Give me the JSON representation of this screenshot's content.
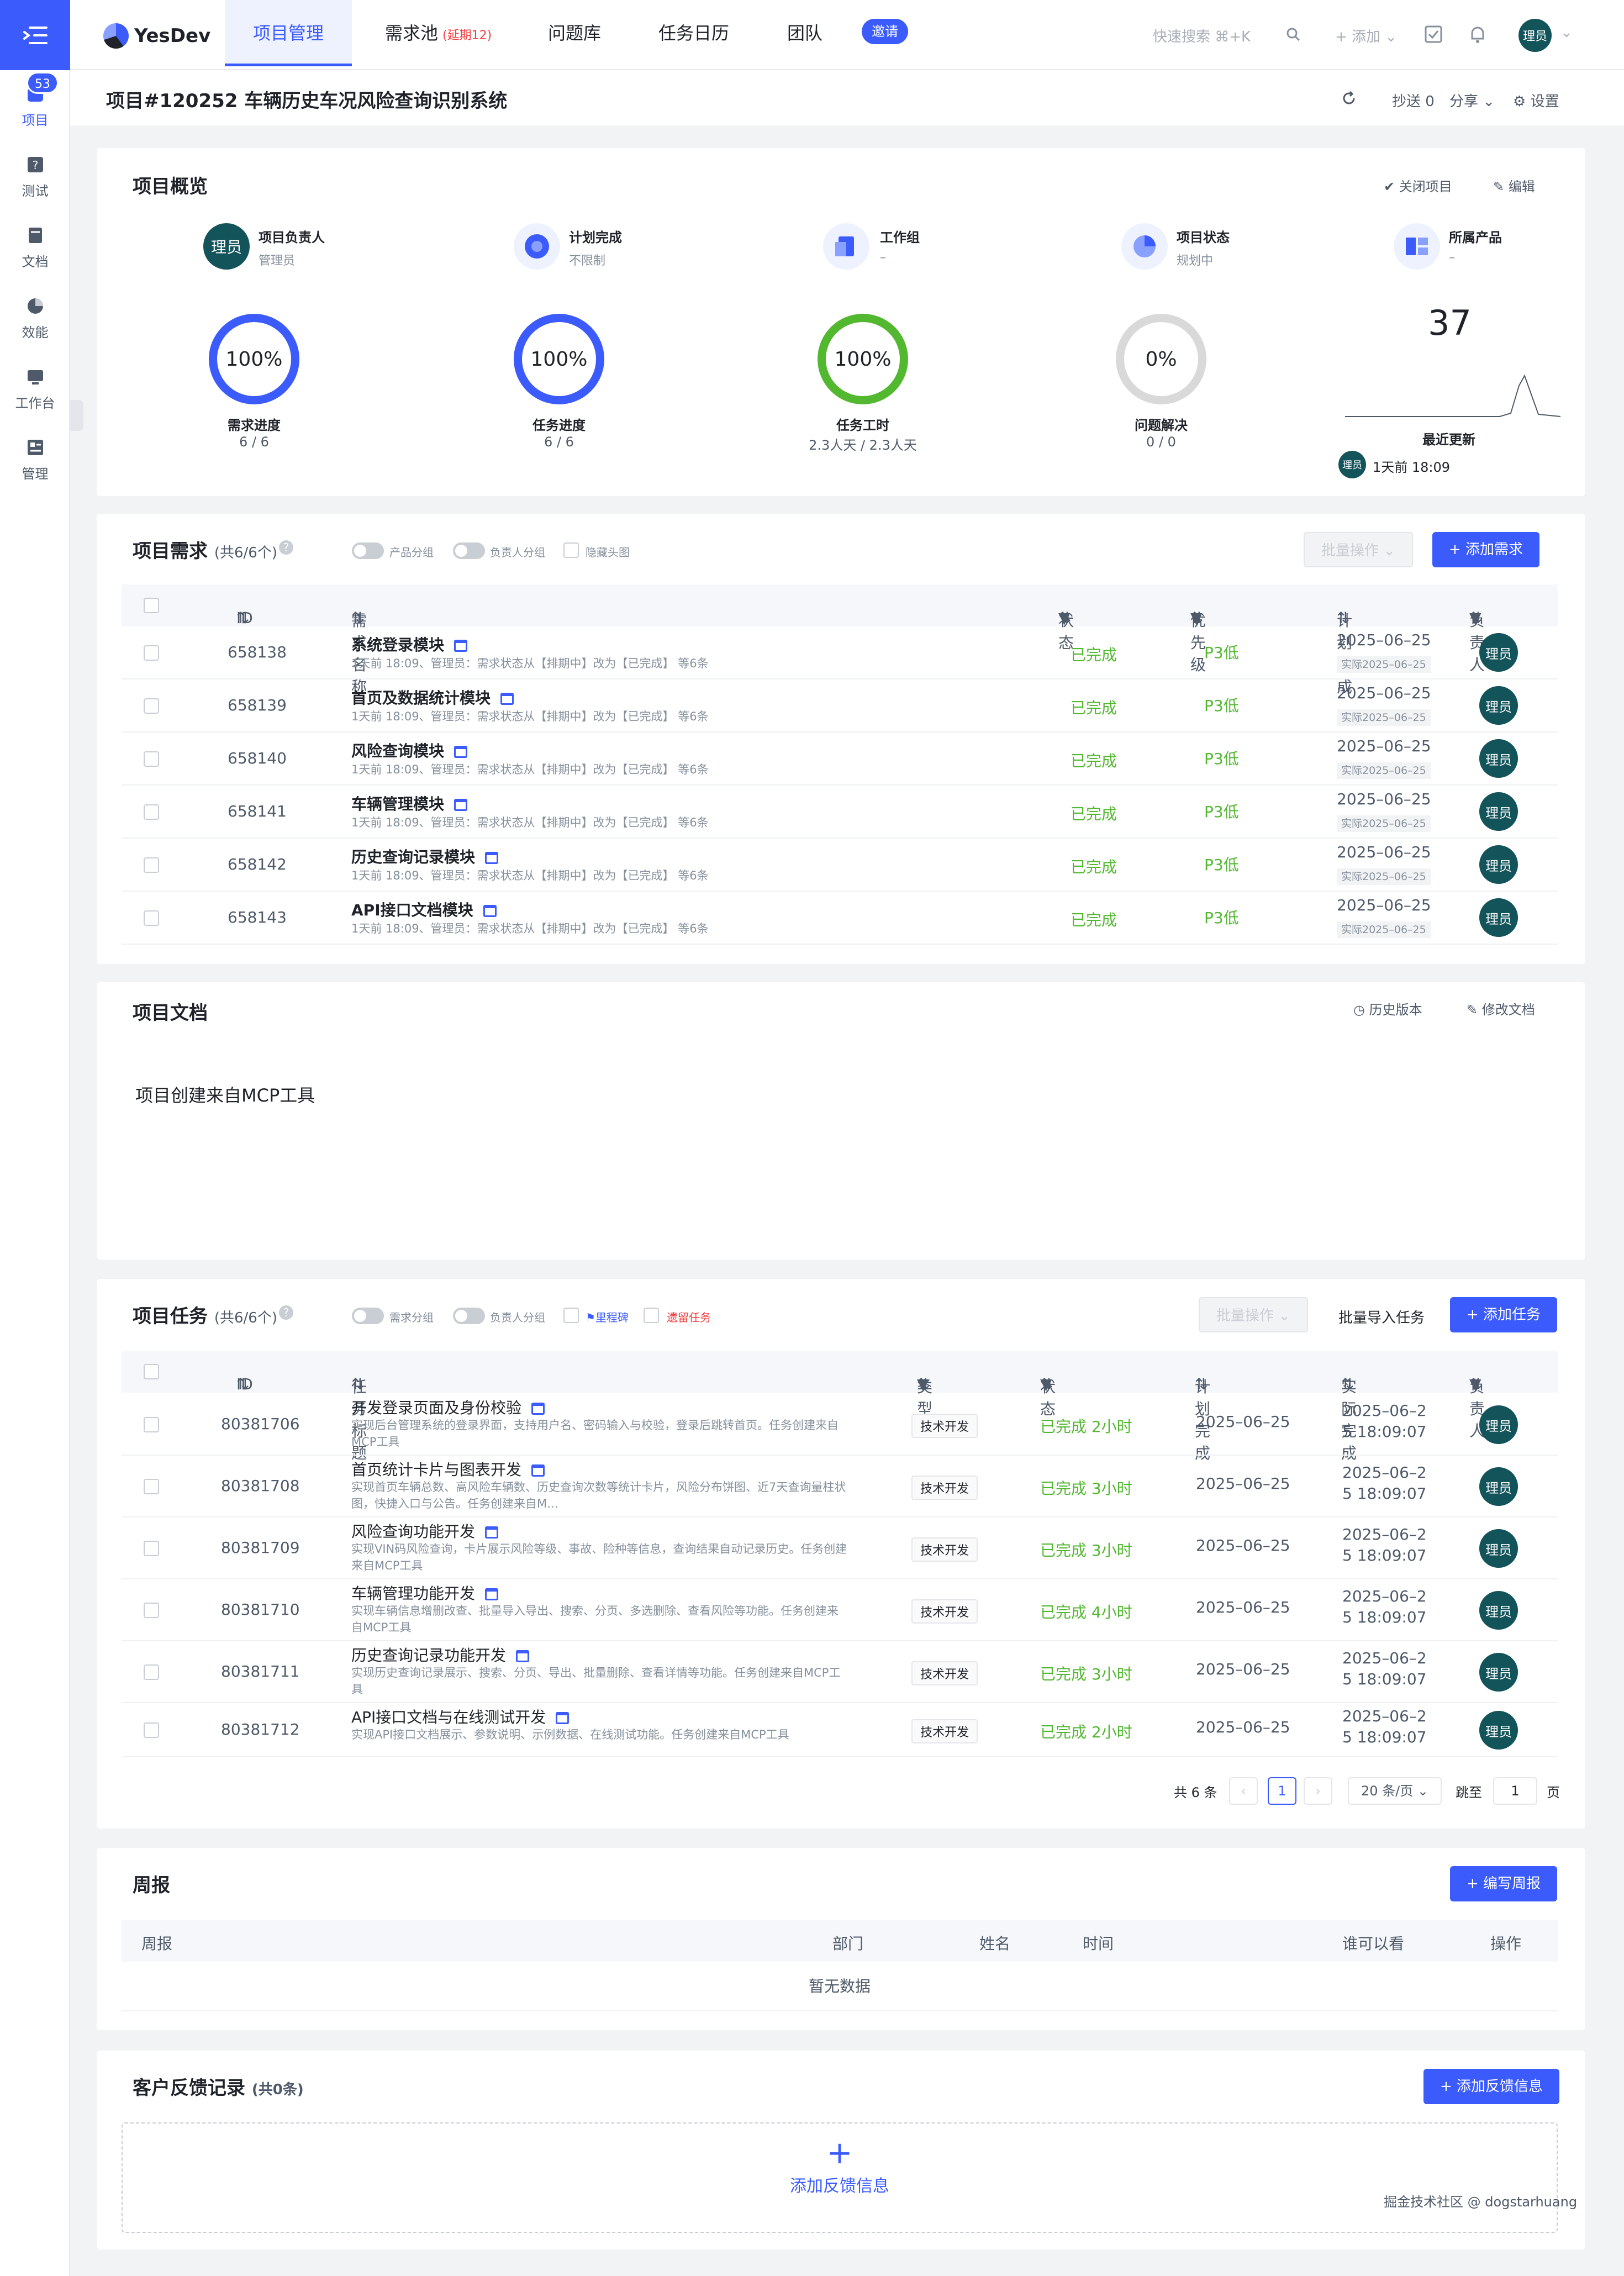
{
  "app": {
    "logo": "YesDev",
    "menu_icon": "menu-indent-icon"
  },
  "rail": {
    "badge": "53",
    "items": [
      {
        "label": "项目",
        "icon": "project-icon"
      },
      {
        "label": "测试",
        "icon": "test-icon"
      },
      {
        "label": "文档",
        "icon": "doc-icon"
      },
      {
        "label": "效能",
        "icon": "pie-icon"
      },
      {
        "label": "工作台",
        "icon": "monitor-icon"
      },
      {
        "label": "管理",
        "icon": "manage-icon"
      }
    ]
  },
  "nav": {
    "tabs": [
      "项目管理",
      "需求池",
      "问题库",
      "任务日历",
      "团队"
    ],
    "req_overdue": "(延期12)",
    "invite": "邀请",
    "search_placeholder": "快速搜索 ⌘+K",
    "add_label": "+ 添加",
    "user": "理员"
  },
  "titlebar": {
    "title": "项目#120252 车辆历史车况风险查询识别系统",
    "cc": "抄送 0",
    "share": "分享",
    "settings": "设置"
  },
  "overview": {
    "title": "项目概览",
    "close": "关闭项目",
    "edit": "编辑",
    "meta": [
      {
        "label": "项目负责人",
        "value": "管理员"
      },
      {
        "label": "计划完成",
        "value": "不限制"
      },
      {
        "label": "工作组",
        "value": "–"
      },
      {
        "label": "项目状态",
        "value": "规划中"
      },
      {
        "label": "所属产品",
        "value": "–"
      }
    ],
    "owner_avatar": "理员",
    "rings": [
      {
        "pct": "100%",
        "fill": 1.0,
        "color": "#3b5bfd",
        "label": "需求进度",
        "sub": "6 / 6"
      },
      {
        "pct": "100%",
        "fill": 1.0,
        "color": "#3b5bfd",
        "label": "任务进度",
        "sub": "6 / 6"
      },
      {
        "pct": "100%",
        "fill": 1.0,
        "color": "#52b830",
        "label": "任务工时",
        "sub": "2.3人天 / 2.3人天"
      },
      {
        "pct": "0%",
        "fill": 0.0,
        "color": "#d9d9d9",
        "label": "问题解决",
        "sub": "0 / 0"
      }
    ],
    "recent": {
      "count": "37",
      "label": "最近更新",
      "avatar": "理员",
      "time": "1天前 18:09"
    }
  },
  "requirements": {
    "title": "项目需求",
    "count": "(共6/6个)",
    "toggles": [
      "产品分组",
      "负责人分组"
    ],
    "hide_avatar": "隐藏头图",
    "batch": "批量操作",
    "add": "+ 添加需求",
    "columns": [
      "ID",
      "需求名称",
      "状态",
      "优先级",
      "计划完成",
      "负责人"
    ],
    "rows": [
      {
        "id": "658138",
        "name": "系统登录模块",
        "desc": "1天前 18:09、管理员：需求状态从【排期中】改为【已完成】 等6条",
        "status": "已完成",
        "prio": "P3低",
        "plan": "2025–06–25",
        "real": "实际2025–06–25",
        "owner": "理员"
      },
      {
        "id": "658139",
        "name": "首页及数据统计模块",
        "desc": "1天前 18:09、管理员：需求状态从【排期中】改为【已完成】 等6条",
        "status": "已完成",
        "prio": "P3低",
        "plan": "2025–06–25",
        "real": "实际2025–06–25",
        "owner": "理员"
      },
      {
        "id": "658140",
        "name": "风险查询模块",
        "desc": "1天前 18:09、管理员：需求状态从【排期中】改为【已完成】 等6条",
        "status": "已完成",
        "prio": "P3低",
        "plan": "2025–06–25",
        "real": "实际2025–06–25",
        "owner": "理员"
      },
      {
        "id": "658141",
        "name": "车辆管理模块",
        "desc": "1天前 18:09、管理员：需求状态从【排期中】改为【已完成】 等6条",
        "status": "已完成",
        "prio": "P3低",
        "plan": "2025–06–25",
        "real": "实际2025–06–25",
        "owner": "理员"
      },
      {
        "id": "658142",
        "name": "历史查询记录模块",
        "desc": "1天前 18:09、管理员：需求状态从【排期中】改为【已完成】 等6条",
        "status": "已完成",
        "prio": "P3低",
        "plan": "2025–06–25",
        "real": "实际2025–06–25",
        "owner": "理员"
      },
      {
        "id": "658143",
        "name": "API接口文档模块",
        "desc": "1天前 18:09、管理员：需求状态从【排期中】改为【已完成】 等6条",
        "status": "已完成",
        "prio": "P3低",
        "plan": "2025–06–25",
        "real": "实际2025–06–25",
        "owner": "理员"
      }
    ]
  },
  "docs": {
    "title": "项目文档",
    "history": "历史版本",
    "edit": "修改文档",
    "content": "项目创建来自MCP工具"
  },
  "tasks": {
    "title": "项目任务",
    "count": "(共6/6个)",
    "toggles": [
      "需求分组",
      "负责人分组"
    ],
    "milestone": "里程碑",
    "leftover": "遗留任务",
    "batch": "批量操作",
    "import": "批量导入任务",
    "add": "+ 添加任务",
    "columns": [
      "ID",
      "任务标题",
      "类型",
      "状态",
      "计划完成",
      "实际完成",
      "负责人"
    ],
    "rows": [
      {
        "id": "80381706",
        "name": "开发登录页面及身份校验",
        "desc": "实现后台管理系统的登录界面，支持用户名、密码输入与校验，登录后跳转首页。任务创建来自MCP工具",
        "type": "技术开发",
        "status": "已完成 2小时",
        "plan": "2025–06–25",
        "real1": "2025–06–2",
        "real2": "5 18:09:07",
        "owner": "理员"
      },
      {
        "id": "80381708",
        "name": "首页统计卡片与图表开发",
        "desc": "实现首页车辆总数、高风险车辆数、历史查询次数等统计卡片，风险分布饼图、近7天查询量柱状图，快捷入口与公告。任务创建来自M…",
        "type": "技术开发",
        "status": "已完成 3小时",
        "plan": "2025–06–25",
        "real1": "2025–06–2",
        "real2": "5 18:09:07",
        "owner": "理员"
      },
      {
        "id": "80381709",
        "name": "风险查询功能开发",
        "desc": "实现VIN码风险查询，卡片展示风险等级、事故、险种等信息，查询结果自动记录历史。任务创建来自MCP工具",
        "type": "技术开发",
        "status": "已完成 3小时",
        "plan": "2025–06–25",
        "real1": "2025–06–2",
        "real2": "5 18:09:07",
        "owner": "理员"
      },
      {
        "id": "80381710",
        "name": "车辆管理功能开发",
        "desc": "实现车辆信息增删改查、批量导入导出、搜索、分页、多选删除、查看风险等功能。任务创建来自MCP工具",
        "type": "技术开发",
        "status": "已完成 4小时",
        "plan": "2025–06–25",
        "real1": "2025–06–2",
        "real2": "5 18:09:07",
        "owner": "理员"
      },
      {
        "id": "80381711",
        "name": "历史查询记录功能开发",
        "desc": "实现历史查询记录展示、搜索、分页、导出、批量删除、查看详情等功能。任务创建来自MCP工具",
        "type": "技术开发",
        "status": "已完成 3小时",
        "plan": "2025–06–25",
        "real1": "2025–06–2",
        "real2": "5 18:09:07",
        "owner": "理员"
      },
      {
        "id": "80381712",
        "name": "API接口文档与在线测试开发",
        "desc": "实现API接口文档展示、参数说明、示例数据、在线测试功能。任务创建来自MCP工具",
        "type": "技术开发",
        "status": "已完成 2小时",
        "plan": "2025–06–25",
        "real1": "2025–06–2",
        "real2": "5 18:09:07",
        "owner": "理员"
      }
    ],
    "pager": {
      "total": "共 6 条",
      "page": "1",
      "size": "20 条/页",
      "goto": "跳至",
      "goto_val": "1",
      "page_unit": "页"
    }
  },
  "weekly": {
    "title": "周报",
    "add": "+ 编写周报",
    "columns": [
      "周报",
      "部门",
      "姓名",
      "时间",
      "谁可以看",
      "操作"
    ],
    "empty": "暂无数据"
  },
  "feedback": {
    "title": "客户反馈记录",
    "count": "(共0条)",
    "add": "+ 添加反馈信息",
    "plus": "+",
    "add_center": "添加反馈信息"
  },
  "footer": {
    "credit": "掘金技术社区 @ dogstarhuang"
  },
  "colors": {
    "primary": "#3b5bfd",
    "success": "#52b830",
    "avatar": "#13535a"
  }
}
